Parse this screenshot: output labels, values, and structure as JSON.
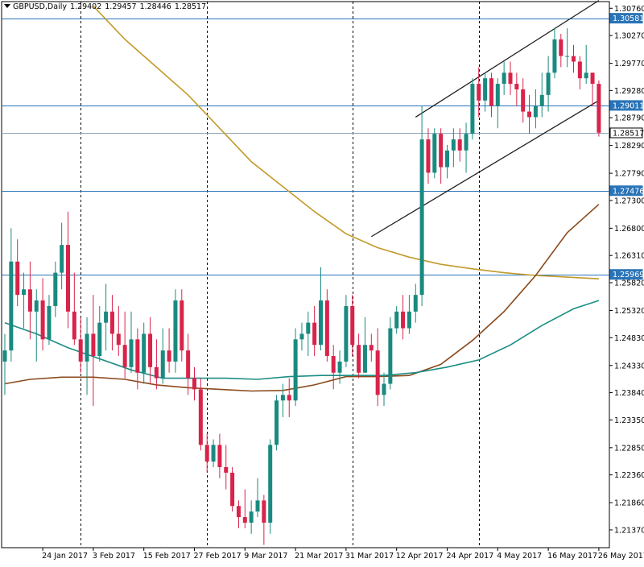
{
  "header": {
    "symbol": "GBPUSD,Daily",
    "open": "1.29402",
    "high": "1.29457",
    "low": "1.28446",
    "close": "1.28517"
  },
  "colors": {
    "background": "#ffffff",
    "bull": "#1a8a80",
    "bear": "#d8234a",
    "level_line": "#2a74b8",
    "sma_long": "#c29a2a",
    "sma_mid": "#8a4a1c",
    "sma_short": "#1b8d84",
    "channel": "#1f1f1f",
    "vline": "#000000"
  },
  "chart_data": {
    "type": "candlestick",
    "symbol": "GBPUSD",
    "timeframe": "Daily",
    "ylim": [
      1.2105,
      1.3088
    ],
    "y_ticks": [
      "1.30760",
      "1.30270",
      "1.29770",
      "1.29280",
      "1.28790",
      "1.28290",
      "1.27790",
      "1.27300",
      "1.26800",
      "1.26310",
      "1.25820",
      "1.25320",
      "1.24830",
      "1.24330",
      "1.23840",
      "1.23350",
      "1.22850",
      "1.22360",
      "1.21860",
      "1.21370"
    ],
    "x_labels": [
      {
        "date": "2017-01-24",
        "label": "24 Jan 2017"
      },
      {
        "date": "2017-02-03",
        "label": "3 Feb 2017"
      },
      {
        "date": "2017-02-15",
        "label": "15 Feb 2017"
      },
      {
        "date": "2017-02-27",
        "label": "27 Feb 2017"
      },
      {
        "date": "2017-03-09",
        "label": "9 Mar 2017"
      },
      {
        "date": "2017-03-21",
        "label": "21 Mar 2017"
      },
      {
        "date": "2017-03-31",
        "label": "31 Mar 2017"
      },
      {
        "date": "2017-04-12",
        "label": "12 Apr 2017"
      },
      {
        "date": "2017-04-24",
        "label": "24 Apr 2017"
      },
      {
        "date": "2017-05-04",
        "label": "4 May 2017"
      },
      {
        "date": "2017-05-16",
        "label": "16 May 2017"
      },
      {
        "date": "2017-05-26",
        "label": "26 May 2017"
      }
    ],
    "vertical_separators": [
      "2017-02-01",
      "2017-03-01",
      "2017-04-03",
      "2017-05-01"
    ],
    "horizontal_levels": [
      {
        "value": 1.30581,
        "label": "1.30581",
        "style": "blue"
      },
      {
        "value": 1.29011,
        "label": "1.29011",
        "style": "blue"
      },
      {
        "value": 1.28517,
        "label": "1.28517",
        "style": "current"
      },
      {
        "value": 1.27476,
        "label": "1.27476",
        "style": "blue"
      },
      {
        "value": 1.25969,
        "label": "1.25969",
        "style": "blue"
      }
    ],
    "candles": [
      {
        "date": "2017-01-16",
        "o": 1.244,
        "h": 1.249,
        "l": 1.238,
        "c": 1.246
      },
      {
        "date": "2017-01-17",
        "o": 1.246,
        "h": 1.268,
        "l": 1.244,
        "c": 1.262
      },
      {
        "date": "2017-01-18",
        "o": 1.262,
        "h": 1.266,
        "l": 1.254,
        "c": 1.256
      },
      {
        "date": "2017-01-19",
        "o": 1.256,
        "h": 1.26,
        "l": 1.25,
        "c": 1.257
      },
      {
        "date": "2017-01-20",
        "o": 1.257,
        "h": 1.262,
        "l": 1.248,
        "c": 1.253
      },
      {
        "date": "2017-01-23",
        "o": 1.253,
        "h": 1.257,
        "l": 1.244,
        "c": 1.255
      },
      {
        "date": "2017-01-24",
        "o": 1.255,
        "h": 1.259,
        "l": 1.246,
        "c": 1.248
      },
      {
        "date": "2017-01-25",
        "o": 1.248,
        "h": 1.256,
        "l": 1.247,
        "c": 1.254
      },
      {
        "date": "2017-01-26",
        "o": 1.254,
        "h": 1.262,
        "l": 1.252,
        "c": 1.26
      },
      {
        "date": "2017-01-27",
        "o": 1.26,
        "h": 1.269,
        "l": 1.257,
        "c": 1.265
      },
      {
        "date": "2017-01-30",
        "o": 1.265,
        "h": 1.271,
        "l": 1.25,
        "c": 1.253
      },
      {
        "date": "2017-01-31",
        "o": 1.253,
        "h": 1.26,
        "l": 1.247,
        "c": 1.248
      },
      {
        "date": "2017-02-01",
        "o": 1.248,
        "h": 1.252,
        "l": 1.242,
        "c": 1.244
      },
      {
        "date": "2017-02-02",
        "o": 1.244,
        "h": 1.252,
        "l": 1.238,
        "c": 1.249
      },
      {
        "date": "2017-02-03",
        "o": 1.249,
        "h": 1.256,
        "l": 1.236,
        "c": 1.245
      },
      {
        "date": "2017-02-06",
        "o": 1.245,
        "h": 1.254,
        "l": 1.244,
        "c": 1.251
      },
      {
        "date": "2017-02-07",
        "o": 1.251,
        "h": 1.258,
        "l": 1.246,
        "c": 1.253
      },
      {
        "date": "2017-02-08",
        "o": 1.253,
        "h": 1.256,
        "l": 1.246,
        "c": 1.249
      },
      {
        "date": "2017-02-09",
        "o": 1.249,
        "h": 1.254,
        "l": 1.245,
        "c": 1.247
      },
      {
        "date": "2017-02-10",
        "o": 1.247,
        "h": 1.253,
        "l": 1.241,
        "c": 1.243
      },
      {
        "date": "2017-02-13",
        "o": 1.243,
        "h": 1.253,
        "l": 1.242,
        "c": 1.248
      },
      {
        "date": "2017-02-14",
        "o": 1.248,
        "h": 1.25,
        "l": 1.239,
        "c": 1.242
      },
      {
        "date": "2017-02-15",
        "o": 1.242,
        "h": 1.251,
        "l": 1.24,
        "c": 1.249
      },
      {
        "date": "2017-02-16",
        "o": 1.249,
        "h": 1.252,
        "l": 1.24,
        "c": 1.243
      },
      {
        "date": "2017-02-17",
        "o": 1.243,
        "h": 1.248,
        "l": 1.239,
        "c": 1.241
      },
      {
        "date": "2017-02-20",
        "o": 1.241,
        "h": 1.25,
        "l": 1.24,
        "c": 1.246
      },
      {
        "date": "2017-02-21",
        "o": 1.246,
        "h": 1.25,
        "l": 1.242,
        "c": 1.244
      },
      {
        "date": "2017-02-22",
        "o": 1.244,
        "h": 1.257,
        "l": 1.242,
        "c": 1.255
      },
      {
        "date": "2017-02-23",
        "o": 1.255,
        "h": 1.257,
        "l": 1.244,
        "c": 1.246
      },
      {
        "date": "2017-02-24",
        "o": 1.246,
        "h": 1.249,
        "l": 1.238,
        "c": 1.241
      },
      {
        "date": "2017-02-27",
        "o": 1.241,
        "h": 1.243,
        "l": 1.237,
        "c": 1.239
      },
      {
        "date": "2017-02-28",
        "o": 1.239,
        "h": 1.241,
        "l": 1.228,
        "c": 1.229
      },
      {
        "date": "2017-03-01",
        "o": 1.229,
        "h": 1.231,
        "l": 1.224,
        "c": 1.226
      },
      {
        "date": "2017-03-02",
        "o": 1.226,
        "h": 1.23,
        "l": 1.225,
        "c": 1.229
      },
      {
        "date": "2017-03-03",
        "o": 1.229,
        "h": 1.231,
        "l": 1.223,
        "c": 1.225
      },
      {
        "date": "2017-03-06",
        "o": 1.225,
        "h": 1.229,
        "l": 1.221,
        "c": 1.224
      },
      {
        "date": "2017-03-07",
        "o": 1.224,
        "h": 1.225,
        "l": 1.217,
        "c": 1.218
      },
      {
        "date": "2017-03-08",
        "o": 1.218,
        "h": 1.219,
        "l": 1.214,
        "c": 1.216
      },
      {
        "date": "2017-03-09",
        "o": 1.216,
        "h": 1.221,
        "l": 1.214,
        "c": 1.215
      },
      {
        "date": "2017-03-10",
        "o": 1.215,
        "h": 1.219,
        "l": 1.213,
        "c": 1.217
      },
      {
        "date": "2017-03-13",
        "o": 1.217,
        "h": 1.223,
        "l": 1.216,
        "c": 1.219
      },
      {
        "date": "2017-03-14",
        "o": 1.219,
        "h": 1.22,
        "l": 1.211,
        "c": 1.215
      },
      {
        "date": "2017-03-15",
        "o": 1.215,
        "h": 1.23,
        "l": 1.213,
        "c": 1.229
      },
      {
        "date": "2017-03-16",
        "o": 1.229,
        "h": 1.238,
        "l": 1.228,
        "c": 1.237
      },
      {
        "date": "2017-03-17",
        "o": 1.237,
        "h": 1.24,
        "l": 1.234,
        "c": 1.238
      },
      {
        "date": "2017-03-20",
        "o": 1.238,
        "h": 1.241,
        "l": 1.234,
        "c": 1.237
      },
      {
        "date": "2017-03-21",
        "o": 1.237,
        "h": 1.25,
        "l": 1.236,
        "c": 1.248
      },
      {
        "date": "2017-03-22",
        "o": 1.248,
        "h": 1.251,
        "l": 1.246,
        "c": 1.249
      },
      {
        "date": "2017-03-23",
        "o": 1.249,
        "h": 1.253,
        "l": 1.245,
        "c": 1.251
      },
      {
        "date": "2017-03-24",
        "o": 1.251,
        "h": 1.254,
        "l": 1.245,
        "c": 1.247
      },
      {
        "date": "2017-03-27",
        "o": 1.247,
        "h": 1.261,
        "l": 1.246,
        "c": 1.255
      },
      {
        "date": "2017-03-28",
        "o": 1.255,
        "h": 1.257,
        "l": 1.244,
        "c": 1.245
      },
      {
        "date": "2017-03-29",
        "o": 1.245,
        "h": 1.247,
        "l": 1.239,
        "c": 1.242
      },
      {
        "date": "2017-03-30",
        "o": 1.242,
        "h": 1.246,
        "l": 1.24,
        "c": 1.244
      },
      {
        "date": "2017-03-31",
        "o": 1.244,
        "h": 1.256,
        "l": 1.243,
        "c": 1.254
      },
      {
        "date": "2017-04-03",
        "o": 1.254,
        "h": 1.256,
        "l": 1.245,
        "c": 1.247
      },
      {
        "date": "2017-04-04",
        "o": 1.247,
        "h": 1.249,
        "l": 1.241,
        "c": 1.242
      },
      {
        "date": "2017-04-05",
        "o": 1.242,
        "h": 1.252,
        "l": 1.242,
        "c": 1.247
      },
      {
        "date": "2017-04-06",
        "o": 1.247,
        "h": 1.249,
        "l": 1.244,
        "c": 1.246
      },
      {
        "date": "2017-04-07",
        "o": 1.246,
        "h": 1.25,
        "l": 1.236,
        "c": 1.238
      },
      {
        "date": "2017-04-10",
        "o": 1.238,
        "h": 1.242,
        "l": 1.236,
        "c": 1.24
      },
      {
        "date": "2017-04-11",
        "o": 1.24,
        "h": 1.252,
        "l": 1.239,
        "c": 1.25
      },
      {
        "date": "2017-04-12",
        "o": 1.25,
        "h": 1.254,
        "l": 1.249,
        "c": 1.253
      },
      {
        "date": "2017-04-13",
        "o": 1.253,
        "h": 1.256,
        "l": 1.248,
        "c": 1.25
      },
      {
        "date": "2017-04-14",
        "o": 1.25,
        "h": 1.256,
        "l": 1.249,
        "c": 1.253
      },
      {
        "date": "2017-04-17",
        "o": 1.253,
        "h": 1.258,
        "l": 1.251,
        "c": 1.256
      },
      {
        "date": "2017-04-18",
        "o": 1.256,
        "h": 1.29,
        "l": 1.254,
        "c": 1.284
      },
      {
        "date": "2017-04-19",
        "o": 1.284,
        "h": 1.286,
        "l": 1.276,
        "c": 1.278
      },
      {
        "date": "2017-04-20",
        "o": 1.278,
        "h": 1.286,
        "l": 1.277,
        "c": 1.285
      },
      {
        "date": "2017-04-21",
        "o": 1.285,
        "h": 1.286,
        "l": 1.276,
        "c": 1.279
      },
      {
        "date": "2017-04-24",
        "o": 1.279,
        "h": 1.283,
        "l": 1.277,
        "c": 1.282
      },
      {
        "date": "2017-04-25",
        "o": 1.282,
        "h": 1.286,
        "l": 1.279,
        "c": 1.284
      },
      {
        "date": "2017-04-26",
        "o": 1.284,
        "h": 1.286,
        "l": 1.28,
        "c": 1.282
      },
      {
        "date": "2017-04-27",
        "o": 1.282,
        "h": 1.287,
        "l": 1.278,
        "c": 1.285
      },
      {
        "date": "2017-04-28",
        "o": 1.285,
        "h": 1.295,
        "l": 1.284,
        "c": 1.294
      },
      {
        "date": "2017-05-01",
        "o": 1.294,
        "h": 1.297,
        "l": 1.288,
        "c": 1.291
      },
      {
        "date": "2017-05-02",
        "o": 1.291,
        "h": 1.296,
        "l": 1.289,
        "c": 1.295
      },
      {
        "date": "2017-05-03",
        "o": 1.295,
        "h": 1.296,
        "l": 1.288,
        "c": 1.29
      },
      {
        "date": "2017-05-04",
        "o": 1.29,
        "h": 1.295,
        "l": 1.286,
        "c": 1.294
      },
      {
        "date": "2017-05-05",
        "o": 1.294,
        "h": 1.298,
        "l": 1.292,
        "c": 1.296
      },
      {
        "date": "2017-05-08",
        "o": 1.296,
        "h": 1.298,
        "l": 1.292,
        "c": 1.294
      },
      {
        "date": "2017-05-09",
        "o": 1.294,
        "h": 1.296,
        "l": 1.29,
        "c": 1.293
      },
      {
        "date": "2017-05-10",
        "o": 1.293,
        "h": 1.295,
        "l": 1.287,
        "c": 1.289
      },
      {
        "date": "2017-05-11",
        "o": 1.289,
        "h": 1.292,
        "l": 1.285,
        "c": 1.288
      },
      {
        "date": "2017-05-12",
        "o": 1.288,
        "h": 1.293,
        "l": 1.286,
        "c": 1.29
      },
      {
        "date": "2017-05-15",
        "o": 1.29,
        "h": 1.296,
        "l": 1.288,
        "c": 1.292
      },
      {
        "date": "2017-05-16",
        "o": 1.292,
        "h": 1.299,
        "l": 1.289,
        "c": 1.296
      },
      {
        "date": "2017-05-17",
        "o": 1.296,
        "h": 1.304,
        "l": 1.295,
        "c": 1.302
      },
      {
        "date": "2017-05-18",
        "o": 1.302,
        "h": 1.303,
        "l": 1.297,
        "c": 1.299
      },
      {
        "date": "2017-05-19",
        "o": 1.299,
        "h": 1.304,
        "l": 1.297,
        "c": 1.299
      },
      {
        "date": "2017-05-22",
        "o": 1.299,
        "h": 1.301,
        "l": 1.296,
        "c": 1.298
      },
      {
        "date": "2017-05-23",
        "o": 1.298,
        "h": 1.299,
        "l": 1.293,
        "c": 1.295
      },
      {
        "date": "2017-05-24",
        "o": 1.295,
        "h": 1.301,
        "l": 1.294,
        "c": 1.296
      },
      {
        "date": "2017-05-25",
        "o": 1.296,
        "h": 1.296,
        "l": 1.29,
        "c": 1.294
      },
      {
        "date": "2017-05-26",
        "o": 1.294,
        "h": 1.2946,
        "l": 1.2845,
        "c": 1.2852
      }
    ],
    "moving_averages": [
      {
        "color_key": "sma_long",
        "points": [
          [
            "2017-02-03",
            1.308
          ],
          [
            "2017-02-10",
            1.302
          ],
          [
            "2017-02-17",
            1.297
          ],
          [
            "2017-02-24",
            1.292
          ],
          [
            "2017-03-03",
            1.286
          ],
          [
            "2017-03-10",
            1.28
          ],
          [
            "2017-03-17",
            1.2755
          ],
          [
            "2017-03-24",
            1.271
          ],
          [
            "2017-03-31",
            1.267
          ],
          [
            "2017-04-07",
            1.2645
          ],
          [
            "2017-04-14",
            1.2628
          ],
          [
            "2017-04-21",
            1.2615
          ],
          [
            "2017-04-28",
            1.2607
          ],
          [
            "2017-05-05",
            1.26
          ],
          [
            "2017-05-12",
            1.2595
          ],
          [
            "2017-05-19",
            1.2592
          ],
          [
            "2017-05-26",
            1.2589
          ]
        ]
      },
      {
        "color_key": "sma_mid",
        "points": [
          [
            "2017-01-16",
            1.24
          ],
          [
            "2017-01-20",
            1.2408
          ],
          [
            "2017-01-27",
            1.2412
          ],
          [
            "2017-02-03",
            1.2412
          ],
          [
            "2017-02-10",
            1.2408
          ],
          [
            "2017-02-17",
            1.2398
          ],
          [
            "2017-02-24",
            1.2393
          ],
          [
            "2017-03-03",
            1.239
          ],
          [
            "2017-03-10",
            1.2387
          ],
          [
            "2017-03-17",
            1.2388
          ],
          [
            "2017-03-24",
            1.2398
          ],
          [
            "2017-03-31",
            1.2413
          ],
          [
            "2017-04-07",
            1.2413
          ],
          [
            "2017-04-14",
            1.2415
          ],
          [
            "2017-04-21",
            1.2435
          ],
          [
            "2017-04-28",
            1.2478
          ],
          [
            "2017-05-05",
            1.253
          ],
          [
            "2017-05-12",
            1.2595
          ],
          [
            "2017-05-19",
            1.2672
          ],
          [
            "2017-05-26",
            1.2723
          ]
        ]
      },
      {
        "color_key": "sma_short",
        "points": [
          [
            "2017-01-16",
            1.251
          ],
          [
            "2017-01-23",
            1.249
          ],
          [
            "2017-01-30",
            1.2465
          ],
          [
            "2017-02-06",
            1.2445
          ],
          [
            "2017-02-13",
            1.2425
          ],
          [
            "2017-02-20",
            1.241
          ],
          [
            "2017-02-27",
            1.241
          ],
          [
            "2017-03-06",
            1.241
          ],
          [
            "2017-03-13",
            1.2408
          ],
          [
            "2017-03-20",
            1.2413
          ],
          [
            "2017-03-27",
            1.2415
          ],
          [
            "2017-04-03",
            1.2415
          ],
          [
            "2017-04-10",
            1.2415
          ],
          [
            "2017-04-17",
            1.242
          ],
          [
            "2017-04-24",
            1.243
          ],
          [
            "2017-05-01",
            1.2443
          ],
          [
            "2017-05-08",
            1.247
          ],
          [
            "2017-05-15",
            1.2505
          ],
          [
            "2017-05-22",
            1.2535
          ],
          [
            "2017-05-26",
            1.255
          ]
        ]
      }
    ],
    "channel_lines": [
      {
        "from": [
          "2017-04-17",
          1.288
        ],
        "to": [
          "2017-05-26",
          1.309
        ]
      },
      {
        "from": [
          "2017-04-06",
          1.2665
        ],
        "to": [
          "2017-05-26",
          1.291
        ]
      }
    ]
  }
}
